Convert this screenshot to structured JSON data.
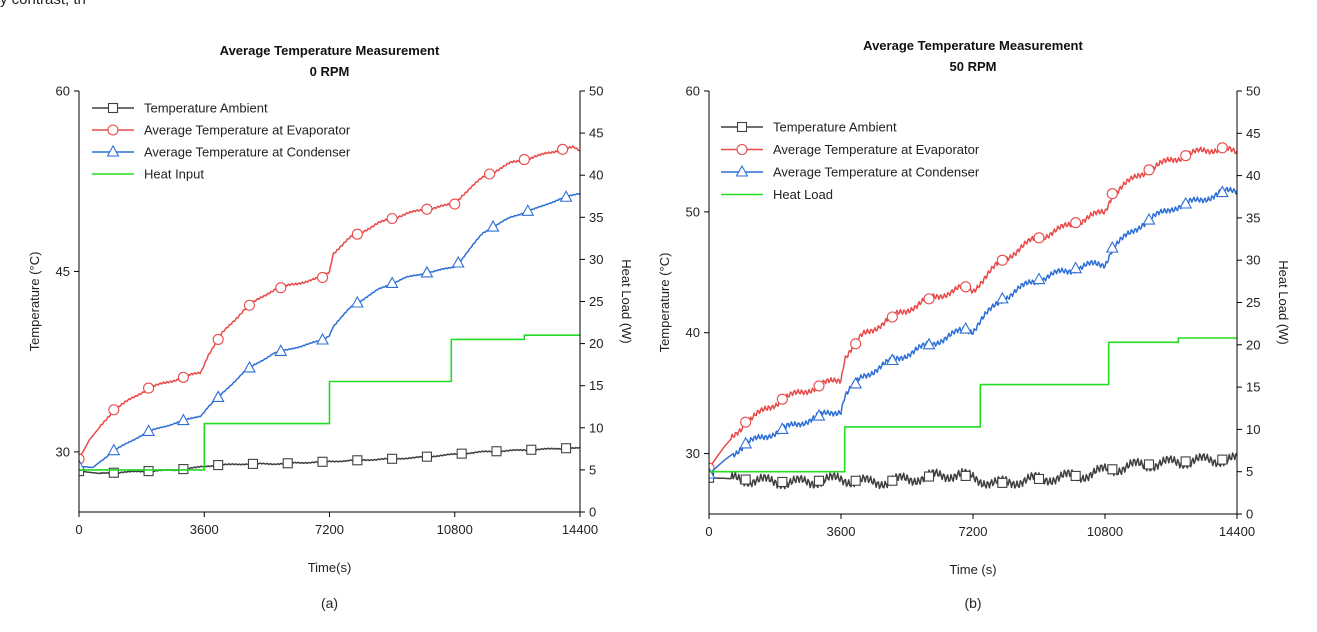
{
  "page": {
    "top_text": "y contrast, th"
  },
  "colors": {
    "ambient": "#404040",
    "evaporator": "#e84a4a",
    "condenser": "#2e6fd6",
    "heat": "#22dd22",
    "axis": "#000000"
  },
  "chart_data": [
    {
      "type": "line",
      "title": "Average Temperature Measurement",
      "subtitle": "0 RPM",
      "panel_label": "(a)",
      "xlabel": "Time(s)",
      "ylabel": "Temperature (°C)",
      "y2label": "Heat Load (W)",
      "xlim": [
        0,
        14400
      ],
      "ylim": [
        25,
        60
      ],
      "y2lim": [
        0,
        50
      ],
      "xticks": [
        "0",
        "3600",
        "7200",
        "10800",
        "14400"
      ],
      "yticks": [
        "30",
        "45",
        "60"
      ],
      "y2ticks": [
        "0",
        "5",
        "10",
        "15",
        "20",
        "25",
        "30",
        "35",
        "40",
        "45",
        "50"
      ],
      "legend_position": "top-left",
      "series": [
        {
          "name": "Temperature Ambient",
          "marker": "square",
          "axis": "left",
          "x": [
            0,
            600,
            1200,
            2000,
            2800,
            3400,
            3600,
            4000,
            4800,
            5600,
            6400,
            7200,
            8000,
            8800,
            9600,
            10400,
            10800,
            11600,
            12400,
            13200,
            14000,
            14400
          ],
          "y": [
            28.4,
            28.2,
            28.3,
            28.4,
            28.5,
            28.7,
            28.8,
            28.9,
            29.0,
            29.0,
            29.1,
            29.2,
            29.3,
            29.4,
            29.5,
            29.7,
            29.8,
            30.0,
            30.1,
            30.2,
            30.3,
            30.3
          ],
          "marker_x": [
            0,
            1000,
            2000,
            3000,
            4000,
            5000,
            6000,
            7000,
            8000,
            9000,
            10000,
            11000,
            12000,
            13000,
            14000
          ]
        },
        {
          "name": "Average Temperature at Evaporator",
          "marker": "circle",
          "axis": "left",
          "x": [
            0,
            300,
            1000,
            2000,
            3000,
            3500,
            3700,
            4100,
            4800,
            5600,
            6400,
            7000,
            7200,
            7300,
            7800,
            8600,
            9400,
            10200,
            10800,
            11000,
            11600,
            12400,
            13200,
            13800,
            14200,
            14400
          ],
          "y": [
            29.4,
            31.0,
            33.5,
            35.3,
            36.2,
            36.6,
            38.0,
            39.8,
            42.0,
            43.5,
            44.1,
            44.5,
            45.0,
            46.5,
            47.8,
            49.0,
            49.8,
            50.3,
            50.6,
            51.3,
            52.8,
            54.0,
            54.6,
            55.1,
            55.3,
            55.0
          ],
          "marker_x": [
            0,
            1000,
            2000,
            3000,
            4000,
            4900,
            5800,
            7000,
            8000,
            9000,
            10000,
            10800,
            11800,
            12800,
            13900
          ]
        },
        {
          "name": "Average Temperature at Condenser",
          "marker": "triangle",
          "axis": "left",
          "x": [
            0,
            400,
            1000,
            2000,
            3000,
            3500,
            3700,
            4100,
            4800,
            5600,
            6400,
            7000,
            7200,
            7300,
            7800,
            8600,
            9400,
            10200,
            10800,
            11000,
            11600,
            12400,
            13200,
            13800,
            14400
          ],
          "y": [
            28.8,
            28.7,
            30.1,
            31.7,
            32.6,
            33.0,
            33.7,
            34.8,
            36.8,
            38.2,
            38.8,
            39.3,
            39.7,
            40.4,
            42.0,
            43.5,
            44.5,
            45.0,
            45.4,
            46.0,
            48.2,
            49.5,
            50.3,
            51.0,
            51.5
          ],
          "marker_x": [
            0,
            1000,
            2000,
            3000,
            4000,
            4900,
            5800,
            7000,
            8000,
            9000,
            10000,
            10900,
            11900,
            12900,
            14000
          ]
        },
        {
          "name": "Heat Input",
          "marker": "none",
          "axis": "right",
          "x": [
            0,
            3600,
            3600,
            7200,
            7200,
            10700,
            10700,
            12800,
            12800,
            14400
          ],
          "y": [
            5,
            5,
            10.5,
            10.5,
            15.5,
            15.5,
            20.5,
            20.5,
            21,
            21
          ],
          "marker_x": []
        }
      ]
    },
    {
      "type": "line",
      "title": "Average Temperature Measurement",
      "subtitle": "50 RPM",
      "panel_label": "(b)",
      "xlabel": "Time (s)",
      "ylabel": "Temperature (°C)",
      "y2label": "Heat Load (W)",
      "xlim": [
        0,
        14400
      ],
      "ylim": [
        25,
        60
      ],
      "y2lim": [
        0,
        50
      ],
      "xticks": [
        "0",
        "3600",
        "7200",
        "10800",
        "14400"
      ],
      "yticks": [
        "30",
        "40",
        "50",
        "60"
      ],
      "y2ticks": [
        "0",
        "5",
        "10",
        "15",
        "20",
        "25",
        "30",
        "35",
        "40",
        "45",
        "50"
      ],
      "legend_position": "top-left",
      "series": [
        {
          "name": "Temperature Ambient",
          "marker": "square",
          "axis": "left",
          "x": [
            0,
            800,
            1600,
            2400,
            3200,
            3600,
            4400,
            5200,
            6000,
            6800,
            7200,
            7800,
            8600,
            9400,
            10200,
            10800,
            11600,
            12400,
            13200,
            14000,
            14400
          ],
          "y": [
            28.0,
            27.9,
            27.7,
            27.6,
            27.8,
            27.9,
            27.6,
            27.8,
            28.1,
            28.3,
            28.0,
            27.5,
            27.8,
            28.0,
            28.2,
            28.6,
            29.0,
            29.2,
            29.4,
            29.5,
            29.5
          ],
          "marker_x": [
            0,
            1000,
            2000,
            3000,
            4000,
            5000,
            6000,
            7000,
            8000,
            9000,
            10000,
            11000,
            12000,
            13000,
            14000
          ]
        },
        {
          "name": "Average Temperature at Evaporator",
          "marker": "circle",
          "axis": "left",
          "x": [
            0,
            400,
            1000,
            2000,
            3000,
            3600,
            3700,
            4200,
            5000,
            6000,
            7000,
            7200,
            7400,
            8000,
            8800,
            9600,
            10400,
            10800,
            11000,
            11800,
            12600,
            13400,
            14000,
            14400
          ],
          "y": [
            28.8,
            30.5,
            32.6,
            34.5,
            35.6,
            36.2,
            38.0,
            39.8,
            41.3,
            42.8,
            43.8,
            43.5,
            44.2,
            46.0,
            47.6,
            48.6,
            49.6,
            50.0,
            51.5,
            53.2,
            54.3,
            55.0,
            55.3,
            54.8
          ],
          "marker_x": [
            0,
            1000,
            2000,
            3000,
            4000,
            5000,
            6000,
            7000,
            8000,
            9000,
            10000,
            11000,
            12000,
            13000,
            14000
          ]
        },
        {
          "name": "Average Temperature at Condenser",
          "marker": "triangle",
          "axis": "left",
          "x": [
            0,
            400,
            1000,
            2000,
            3000,
            3600,
            3700,
            4200,
            5000,
            6000,
            7000,
            7200,
            7400,
            8000,
            8800,
            9600,
            10400,
            10800,
            11000,
            11800,
            12600,
            13400,
            14000,
            14400
          ],
          "y": [
            28.3,
            29.4,
            30.8,
            32.0,
            33.1,
            33.6,
            34.8,
            36.4,
            37.7,
            39.0,
            40.3,
            40.2,
            41.0,
            42.8,
            44.2,
            45.0,
            45.6,
            45.7,
            47.0,
            49.0,
            50.3,
            51.0,
            51.6,
            51.8
          ],
          "marker_x": [
            0,
            1000,
            2000,
            3000,
            4000,
            5000,
            6000,
            7000,
            8000,
            9000,
            10000,
            11000,
            12000,
            13000,
            14000
          ]
        },
        {
          "name": "Heat Load",
          "marker": "none",
          "axis": "right",
          "x": [
            0,
            3700,
            3700,
            7400,
            7400,
            10900,
            10900,
            12800,
            12800,
            14400
          ],
          "y": [
            5,
            5,
            10.3,
            10.3,
            15.3,
            15.3,
            20.3,
            20.3,
            20.8,
            20.8
          ],
          "marker_x": []
        }
      ]
    }
  ]
}
